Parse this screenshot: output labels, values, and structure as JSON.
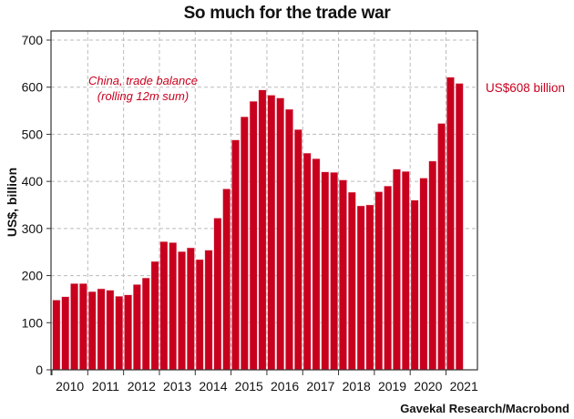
{
  "chart_data": {
    "type": "bar",
    "title": "So much for the trade war",
    "xlabel": "",
    "ylabel": "US$, billion",
    "ylim": [
      0,
      700
    ],
    "yticks": [
      0,
      100,
      200,
      300,
      400,
      500,
      600,
      700
    ],
    "year_labels": [
      "2010",
      "2011",
      "2012",
      "2013",
      "2014",
      "2015",
      "2016",
      "2017",
      "2018",
      "2019",
      "2020",
      "2021"
    ],
    "grid": true,
    "bar_color": "#c8001e",
    "series": [
      {
        "name": "China, trade balance (rolling 12m sum)",
        "frequency": "quarterly",
        "x": [
          "2010Q1",
          "2010Q2",
          "2010Q3",
          "2010Q4",
          "2011Q1",
          "2011Q2",
          "2011Q3",
          "2011Q4",
          "2012Q1",
          "2012Q2",
          "2012Q3",
          "2012Q4",
          "2013Q1",
          "2013Q2",
          "2013Q3",
          "2013Q4",
          "2014Q1",
          "2014Q2",
          "2014Q3",
          "2014Q4",
          "2015Q1",
          "2015Q2",
          "2015Q3",
          "2015Q4",
          "2016Q1",
          "2016Q2",
          "2016Q3",
          "2016Q4",
          "2017Q1",
          "2017Q2",
          "2017Q3",
          "2017Q4",
          "2018Q1",
          "2018Q2",
          "2018Q3",
          "2018Q4",
          "2019Q1",
          "2019Q2",
          "2019Q3",
          "2019Q4",
          "2020Q1",
          "2020Q2",
          "2020Q3",
          "2020Q4",
          "2021Q1",
          "2021Q2"
        ],
        "values": [
          148,
          155,
          183,
          183,
          166,
          172,
          169,
          156,
          159,
          181,
          195,
          230,
          272,
          270,
          251,
          259,
          234,
          254,
          322,
          384,
          488,
          537,
          570,
          594,
          583,
          577,
          553,
          510,
          460,
          448,
          420,
          419,
          403,
          377,
          348,
          350,
          378,
          390,
          426,
          421,
          360,
          407,
          443,
          523,
          621,
          608
        ]
      }
    ],
    "annotations": {
      "series_label_line1": "China, trade balance",
      "series_label_line2": "(rolling 12m sum)",
      "callout": "US$608 billion"
    },
    "source": "Gavekal Research/Macrobond"
  }
}
